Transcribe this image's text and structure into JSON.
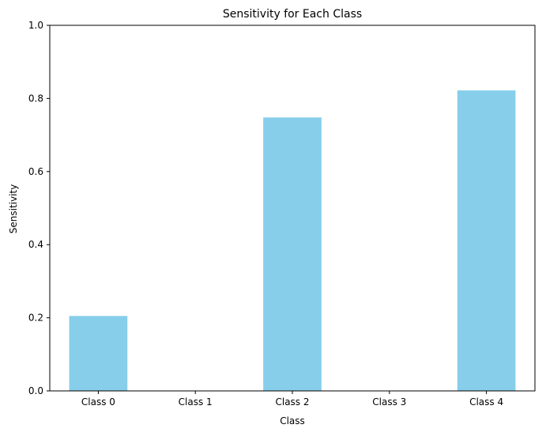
{
  "chart_data": {
    "type": "bar",
    "title": "Sensitivity for Each Class",
    "xlabel": "Class",
    "ylabel": "Sensitivity",
    "categories": [
      "Class 0",
      "Class 1",
      "Class 2",
      "Class 3",
      "Class 4"
    ],
    "values": [
      0.205,
      0.0,
      0.748,
      0.0,
      0.822
    ],
    "ylim": [
      0,
      1
    ],
    "yticks": [
      "0.0",
      "0.2",
      "0.4",
      "0.6",
      "0.8",
      "1.0"
    ],
    "ytick_values": [
      0,
      0.2,
      0.4,
      0.6,
      0.8,
      1.0
    ],
    "bar_color": "#87ceeb",
    "grid": false
  }
}
